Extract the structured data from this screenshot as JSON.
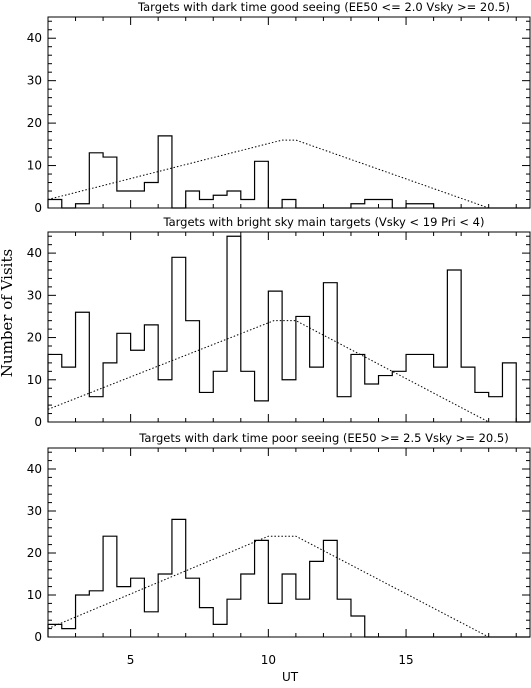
{
  "chart_data": [
    {
      "type": "line",
      "title": "Targets with dark time good seeing (EE50 <= 2.0 Vsky >= 20.5)",
      "xlim": [
        2,
        19.5
      ],
      "ylim": [
        0,
        45
      ],
      "yticks": [
        "0",
        "10",
        "20",
        "30",
        "40"
      ],
      "xticks": [
        "5",
        "10",
        "15"
      ],
      "bin_start": 2.0,
      "bin_width": 0.5,
      "histogram": [
        2,
        0,
        1,
        13,
        12,
        4,
        4,
        6,
        17,
        0,
        4,
        2,
        3,
        4,
        2,
        11,
        0,
        2,
        0,
        0,
        0,
        0,
        1,
        2,
        2,
        0,
        1,
        1,
        0,
        0,
        0,
        0,
        0,
        0,
        0
      ],
      "curve": {
        "x": [
          2,
          10.5,
          11,
          18
        ],
        "y": [
          2,
          16,
          16,
          0
        ]
      }
    },
    {
      "type": "line",
      "title": "Targets with bright sky main targets (Vsky < 19 Pri < 4)",
      "xlim": [
        2,
        19.5
      ],
      "ylim": [
        0,
        45
      ],
      "yticks": [
        "0",
        "10",
        "20",
        "30",
        "40"
      ],
      "xticks": [
        "5",
        "10",
        "15"
      ],
      "bin_start": 2.0,
      "bin_width": 0.5,
      "histogram": [
        16,
        13,
        26,
        6,
        14,
        21,
        17,
        23,
        10,
        39,
        24,
        7,
        12,
        44,
        12,
        5,
        31,
        10,
        25,
        13,
        33,
        6,
        16,
        9,
        11,
        12,
        16,
        16,
        13,
        36,
        13,
        7,
        6,
        14,
        0
      ],
      "curve": {
        "x": [
          2,
          10.2,
          11,
          18
        ],
        "y": [
          3,
          24,
          24,
          0
        ]
      }
    },
    {
      "type": "line",
      "title": "Targets with dark time poor seeing (EE50 >= 2.5 Vsky >= 20.5)",
      "xlim": [
        2,
        19.5
      ],
      "ylim": [
        0,
        45
      ],
      "yticks": [
        "0",
        "10",
        "20",
        "30",
        "40"
      ],
      "xticks": [
        "5",
        "10",
        "15"
      ],
      "bin_start": 2.0,
      "bin_width": 0.5,
      "histogram": [
        3,
        2,
        10,
        11,
        24,
        12,
        14,
        6,
        15,
        28,
        14,
        7,
        3,
        9,
        15,
        23,
        8,
        15,
        9,
        18,
        23,
        9,
        5,
        0,
        0,
        0,
        0,
        0,
        0,
        0,
        0,
        0,
        0,
        0,
        0
      ],
      "curve": {
        "x": [
          2,
          10,
          11,
          18
        ],
        "y": [
          2,
          24,
          24,
          0
        ]
      }
    }
  ],
  "xlabel": "UT",
  "ylabel": "Number of Visits"
}
